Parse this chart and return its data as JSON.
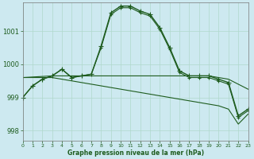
{
  "background_color": "#cde9f0",
  "grid_color": "#b0d8cc",
  "line_color": "#1e5c1e",
  "title": "Graphe pression niveau de la mer (hPa)",
  "xlim": [
    0,
    23
  ],
  "ylim": [
    997.7,
    1001.85
  ],
  "yticks": [
    998,
    999,
    1000,
    1001
  ],
  "xticks": [
    0,
    1,
    2,
    3,
    4,
    5,
    6,
    7,
    8,
    9,
    10,
    11,
    12,
    13,
    14,
    15,
    16,
    17,
    18,
    19,
    20,
    21,
    22,
    23
  ],
  "series": [
    {
      "x": [
        0,
        1,
        2,
        3,
        4,
        5,
        6,
        7,
        8,
        9,
        10,
        11,
        12,
        13,
        14,
        15,
        16,
        17,
        18,
        19,
        20,
        21,
        22,
        23
      ],
      "y": [
        999.0,
        999.35,
        999.55,
        999.65,
        999.85,
        999.6,
        999.65,
        999.7,
        1000.55,
        1001.55,
        1001.75,
        1001.75,
        1001.6,
        1001.5,
        1001.1,
        1000.5,
        999.8,
        999.65,
        999.65,
        999.65,
        999.55,
        999.45,
        998.45,
        998.65
      ],
      "marker": "+",
      "linewidth": 1.0,
      "markersize": 4
    },
    {
      "x": [
        0,
        1,
        2,
        3,
        4,
        5,
        6,
        7,
        8,
        9,
        10,
        11,
        12,
        13,
        14,
        15,
        16,
        17,
        18,
        19,
        20,
        21,
        22,
        23
      ],
      "y": [
        999.0,
        999.35,
        999.55,
        999.65,
        999.85,
        999.6,
        999.65,
        999.7,
        1000.5,
        1001.5,
        1001.7,
        1001.7,
        1001.55,
        1001.45,
        1001.05,
        1000.45,
        999.75,
        999.6,
        999.6,
        999.6,
        999.5,
        999.4,
        998.4,
        998.6
      ],
      "marker": "+",
      "linewidth": 0.8,
      "markersize": 3
    },
    {
      "x": [
        0,
        3,
        4,
        5,
        6,
        7,
        8,
        9,
        10,
        11,
        12,
        13,
        14,
        15,
        16,
        17,
        18,
        19,
        20,
        21,
        23
      ],
      "y": [
        999.6,
        999.65,
        999.65,
        999.65,
        999.65,
        999.65,
        999.65,
        999.65,
        999.65,
        999.65,
        999.65,
        999.65,
        999.65,
        999.65,
        999.65,
        999.65,
        999.65,
        999.65,
        999.6,
        999.55,
        999.25
      ],
      "marker": "",
      "linewidth": 0.8,
      "markersize": 0
    },
    {
      "x": [
        0,
        3,
        4,
        5,
        6,
        7,
        8,
        9,
        10,
        11,
        12,
        13,
        14,
        15,
        16,
        17,
        18,
        19,
        20,
        21,
        22,
        23
      ],
      "y": [
        999.6,
        999.6,
        999.55,
        999.5,
        999.45,
        999.4,
        999.35,
        999.3,
        999.25,
        999.2,
        999.15,
        999.1,
        999.05,
        999.0,
        998.95,
        998.9,
        998.85,
        998.8,
        998.75,
        998.65,
        998.2,
        998.5
      ],
      "marker": "",
      "linewidth": 0.8,
      "markersize": 0
    }
  ]
}
